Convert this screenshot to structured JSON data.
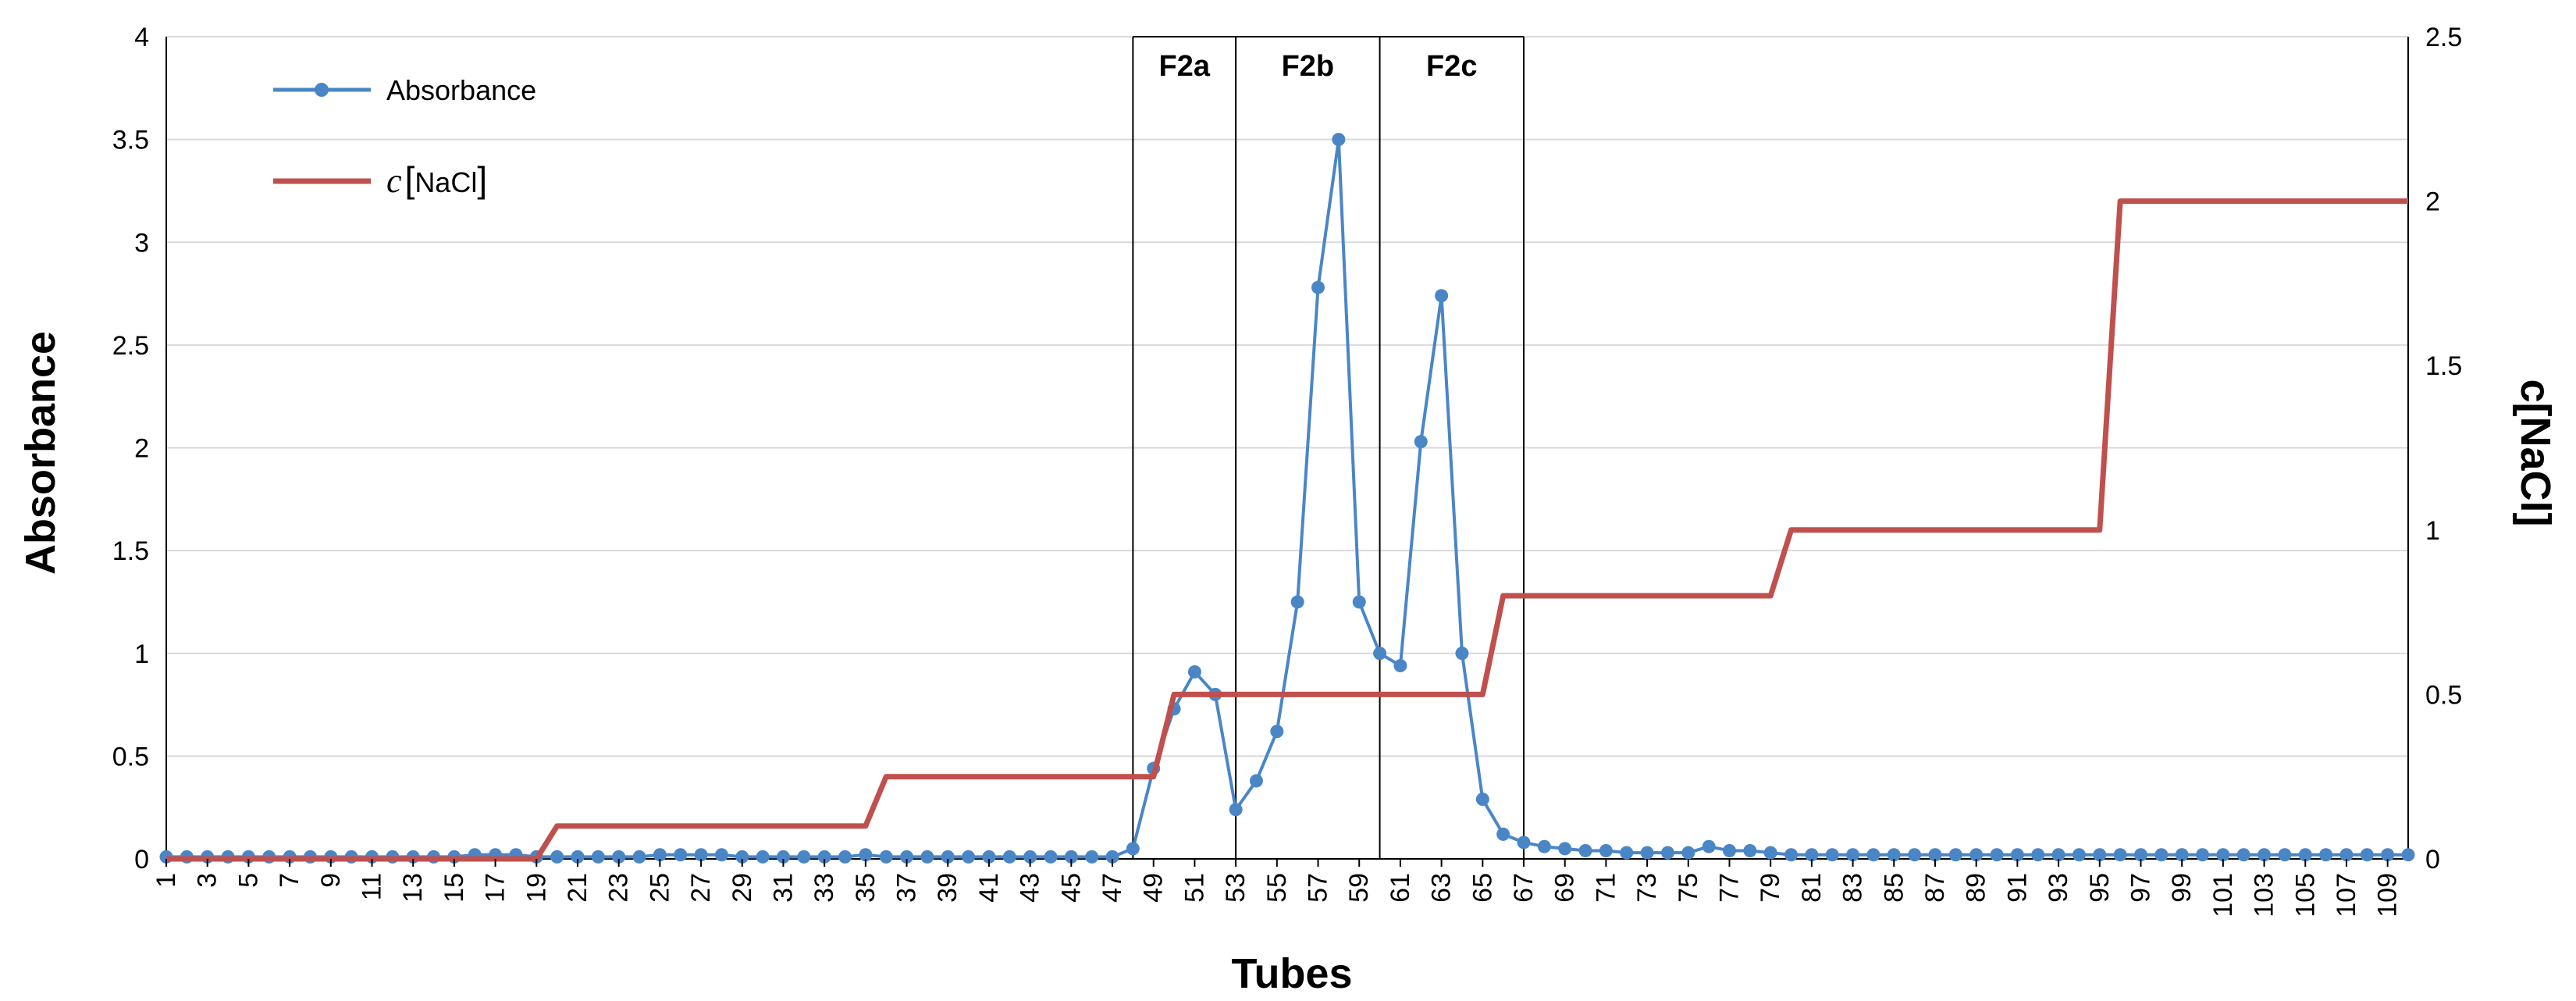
{
  "chart_data": {
    "type": "line",
    "xlabel": "Tubes",
    "ylabel": "Absorbance",
    "y2label": "c[NaCl]",
    "ylim": [
      0,
      4
    ],
    "y2lim": [
      0,
      2.5
    ],
    "yticks": [
      "0",
      "0.5",
      "1",
      "1.5",
      "2",
      "2.5",
      "3",
      "3.5",
      "4"
    ],
    "y2ticks": [
      "0",
      "0.5",
      "1",
      "1.5",
      "2",
      "2.5"
    ],
    "x_range": [
      1,
      110
    ],
    "x_tick_labels_every": 2,
    "grid": "horizontal",
    "legend_position": "top-left",
    "legend": [
      {
        "name": "Absorbance",
        "color": "#4a86c6",
        "marker": "circle"
      },
      {
        "name_prefix": "c",
        "name_inner": "NaCl",
        "color": "#c0504d",
        "marker": "none"
      }
    ],
    "regions": [
      {
        "label": "F2a",
        "from": 48,
        "to": 53
      },
      {
        "label": "F2b",
        "from": 53,
        "to": 60
      },
      {
        "label": "F2c",
        "from": 60,
        "to": 67
      }
    ],
    "series": [
      {
        "name": "Absorbance",
        "axis": "left",
        "color": "#4a86c6",
        "x": [
          1,
          2,
          3,
          4,
          5,
          6,
          7,
          8,
          9,
          10,
          11,
          12,
          13,
          14,
          15,
          16,
          17,
          18,
          19,
          20,
          21,
          22,
          23,
          24,
          25,
          26,
          27,
          28,
          29,
          30,
          31,
          32,
          33,
          34,
          35,
          36,
          37,
          38,
          39,
          40,
          41,
          42,
          43,
          44,
          45,
          46,
          47,
          48,
          49,
          50,
          51,
          52,
          53,
          54,
          55,
          56,
          57,
          58,
          59,
          60,
          61,
          62,
          63,
          64,
          65,
          66,
          67,
          68,
          69,
          70,
          71,
          72,
          73,
          74,
          75,
          76,
          77,
          78,
          79,
          80,
          81,
          82,
          83,
          84,
          85,
          86,
          87,
          88,
          89,
          90,
          91,
          92,
          93,
          94,
          95,
          96,
          97,
          98,
          99,
          100,
          101,
          102,
          103,
          104,
          105,
          106,
          107,
          108,
          109,
          110
        ],
        "values": [
          0.01,
          0.01,
          0.01,
          0.01,
          0.01,
          0.01,
          0.01,
          0.01,
          0.01,
          0.01,
          0.01,
          0.01,
          0.01,
          0.01,
          0.01,
          0.02,
          0.02,
          0.02,
          0.01,
          0.01,
          0.01,
          0.01,
          0.01,
          0.01,
          0.02,
          0.02,
          0.02,
          0.02,
          0.01,
          0.01,
          0.01,
          0.01,
          0.01,
          0.01,
          0.02,
          0.01,
          0.01,
          0.01,
          0.01,
          0.01,
          0.01,
          0.01,
          0.01,
          0.01,
          0.01,
          0.01,
          0.01,
          0.05,
          0.44,
          0.73,
          0.91,
          0.8,
          0.24,
          0.38,
          0.62,
          1.25,
          2.78,
          3.5,
          1.25,
          1.0,
          0.94,
          2.03,
          2.74,
          1.0,
          0.29,
          0.12,
          0.08,
          0.06,
          0.05,
          0.04,
          0.04,
          0.03,
          0.03,
          0.03,
          0.03,
          0.06,
          0.04,
          0.04,
          0.03,
          0.02,
          0.02,
          0.02,
          0.02,
          0.02,
          0.02,
          0.02,
          0.02,
          0.02,
          0.02,
          0.02,
          0.02,
          0.02,
          0.02,
          0.02,
          0.02,
          0.02,
          0.02,
          0.02,
          0.02,
          0.02,
          0.02,
          0.02,
          0.02,
          0.02,
          0.02,
          0.02,
          0.02,
          0.02,
          0.02,
          0.02
        ]
      },
      {
        "axis": "right",
        "color": "#c0504d",
        "x": [
          1,
          19,
          20,
          35,
          36,
          49,
          50,
          65,
          66,
          79,
          80,
          95,
          96,
          110
        ],
        "values": [
          0,
          0,
          0.1,
          0.1,
          0.25,
          0.25,
          0.5,
          0.5,
          0.8,
          0.8,
          1.0,
          1.0,
          2.0,
          2.0
        ]
      }
    ]
  }
}
